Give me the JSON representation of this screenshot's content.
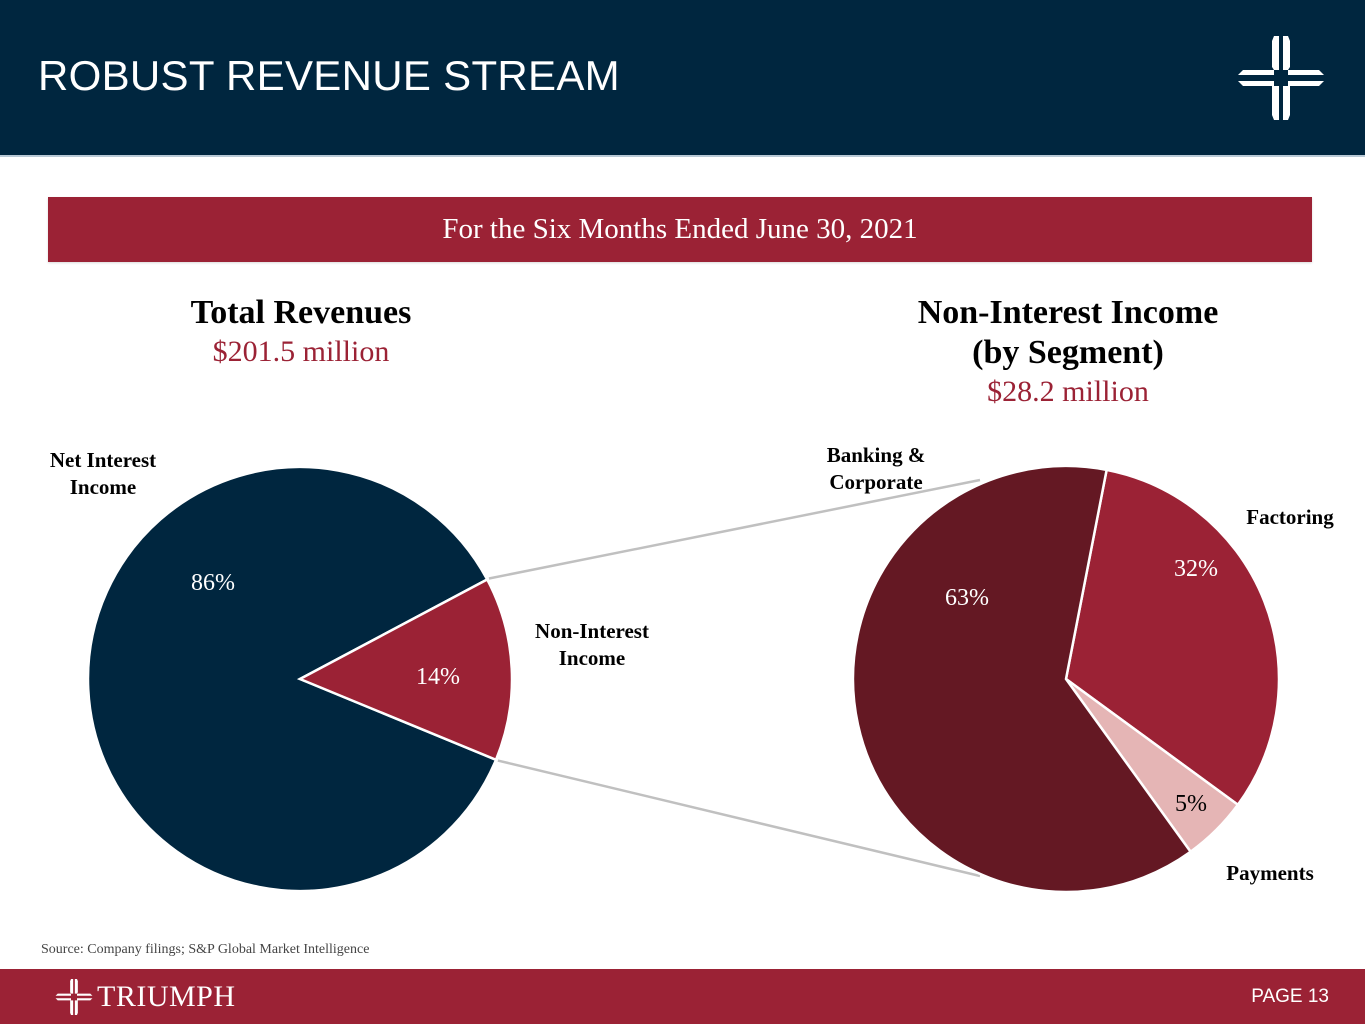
{
  "header": {
    "title": "ROBUST REVENUE STREAM",
    "logo_icon": "triumph-cross-logo-icon"
  },
  "banner": {
    "text": "For the Six Months Ended June 30, 2021"
  },
  "colors": {
    "navy": "#00263f",
    "crimson": "#9b2235",
    "dark_maroon": "#641823",
    "light_pink": "#e5b5b5",
    "connector_gray": "#c0c0c0"
  },
  "chart_data": [
    {
      "type": "pie",
      "title": "Total Revenues",
      "subtitle": "$201.5 million",
      "categories": [
        "Net Interest Income",
        "Non-Interest Income"
      ],
      "values": [
        86,
        14
      ],
      "labels": [
        "86%",
        "14%"
      ],
      "colors": [
        "#00263f",
        "#9b2235"
      ],
      "label_lines": [
        [
          "Net Interest",
          "Income"
        ],
        [
          "Non-Interest",
          "Income"
        ]
      ]
    },
    {
      "type": "pie",
      "title": "Non-Interest Income (by Segment)",
      "title_lines": [
        "Non-Interest Income",
        "(by Segment)"
      ],
      "subtitle": "$28.2 million",
      "categories": [
        "Factoring",
        "Payments",
        "Banking & Corporate"
      ],
      "values": [
        32,
        5,
        63
      ],
      "labels": [
        "32%",
        "5%",
        "63%"
      ],
      "colors": [
        "#9b2235",
        "#e5b5b5",
        "#641823"
      ],
      "label_lines": [
        [
          "Factoring"
        ],
        [
          "Payments"
        ],
        [
          "Banking &",
          "Corporate"
        ]
      ]
    }
  ],
  "source": "Source: Company filings; S&P Global Market Intelligence",
  "footer": {
    "brand": "TRIUMPH",
    "page": "PAGE 13"
  }
}
